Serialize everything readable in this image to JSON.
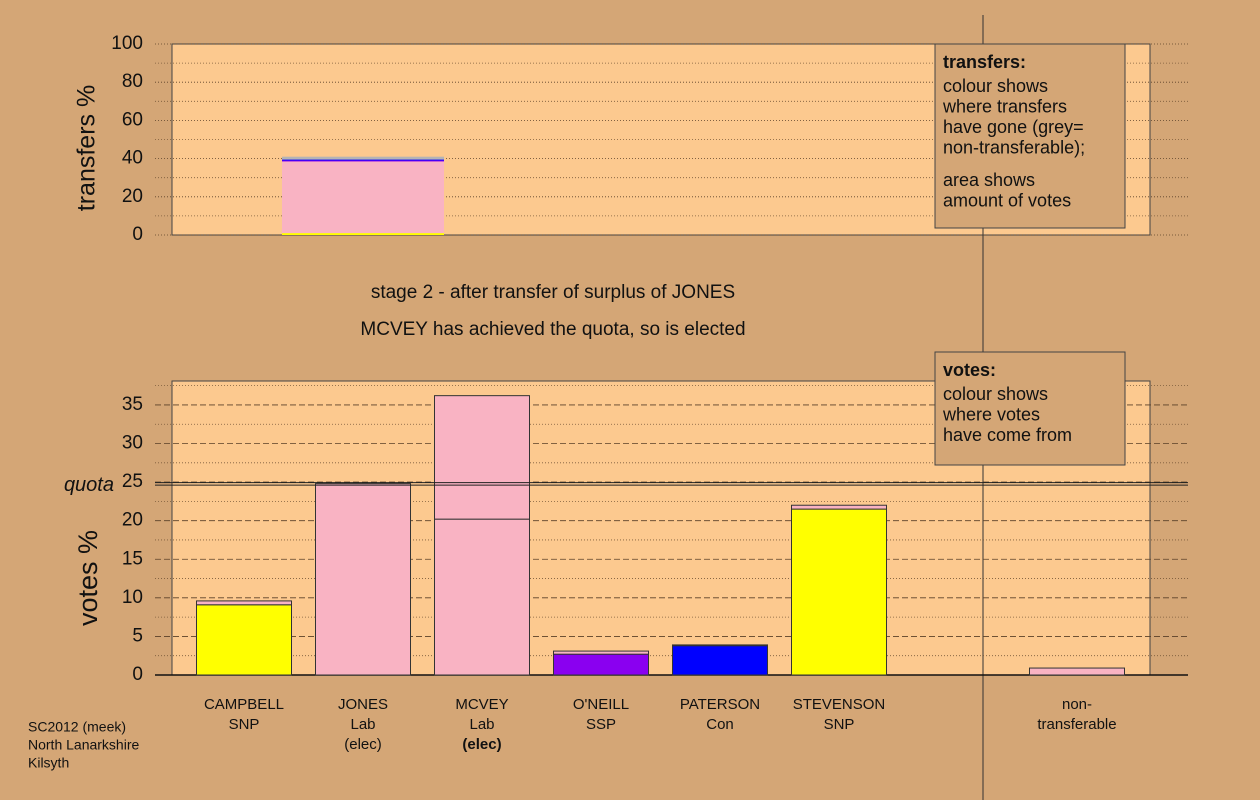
{
  "title": "stage 2 - after transfer of surplus of JONES",
  "subtitle": "MCVEY has achieved the quota, so is elected",
  "footer": [
    "SC2012 (meek)",
    "North Lanarkshire",
    "Kilsyth"
  ],
  "chart_data": [
    {
      "type": "stacked-bar",
      "ylabel": "transfers %",
      "ylim": [
        0,
        100
      ],
      "yticks": [
        0,
        20,
        40,
        60,
        80,
        100
      ],
      "minor_yticks": [
        10,
        30,
        50,
        70,
        90
      ],
      "grid": true,
      "series": [
        {
          "color": "#ffff00",
          "values": [
            1
          ]
        },
        {
          "color": "#f9b3c3",
          "values": [
            37.5
          ]
        },
        {
          "color": "#8a00f0",
          "values": [
            0.5
          ]
        },
        {
          "color": "#0000ff",
          "values": [
            0.5
          ]
        },
        {
          "color": "#b4b4b4",
          "values": [
            1.5
          ]
        }
      ],
      "info_box": {
        "title": "transfers:",
        "paragraphs": [
          [
            "colour shows",
            "where transfers",
            "have gone (grey=",
            "non-transferable);"
          ],
          [
            "area shows",
            "amount of votes"
          ]
        ]
      }
    },
    {
      "type": "stacked-bar",
      "ylabel": "votes %",
      "ylim": [
        0,
        38.1
      ],
      "yticks": [
        0,
        5,
        10,
        15,
        20,
        25,
        30,
        35
      ],
      "minor_yticks": [
        2.5,
        7.5,
        12.5,
        17.5,
        22.5,
        27.5,
        32.5,
        37.5
      ],
      "grid": true,
      "categories": [
        [
          "CAMPBELL",
          "SNP"
        ],
        [
          "JONES",
          "Lab",
          "(elec)"
        ],
        [
          "MCVEY",
          "Lab",
          "(elec)"
        ],
        [
          "O'NEILL",
          "SSP"
        ],
        [
          "PATERSON",
          "Con"
        ],
        [
          "STEVENSON",
          "SNP"
        ],
        [
          "non-",
          "transferable"
        ]
      ],
      "series": [
        {
          "colors": [
            "#ffff00",
            "#f9b3c3",
            "#f9b3c3",
            "#8a00f0",
            "#0000ff",
            "#ffff00",
            null
          ],
          "values": [
            9.1,
            24.8,
            20.2,
            2.7,
            3.8,
            21.5,
            null
          ]
        },
        {
          "color": "#f9b3c3",
          "values": [
            0.5,
            null,
            16.0,
            0.4,
            0.1,
            0.5,
            0.9
          ]
        }
      ],
      "quota": {
        "label": "quota",
        "value": 24.8
      },
      "info_box": {
        "title": "votes:",
        "paragraphs": [
          [
            "colour shows",
            "where votes",
            "have come from"
          ]
        ]
      }
    }
  ]
}
